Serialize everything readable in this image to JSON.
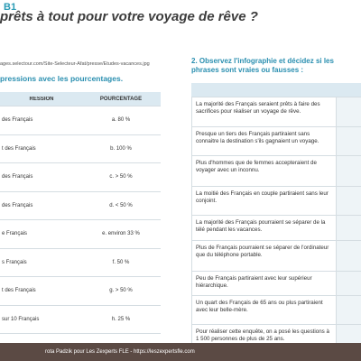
{
  "header": {
    "level": "B1",
    "title": "prêts à tout pour votre voyage de rêve ?"
  },
  "left": {
    "source": "ages.selectour.com/Site-Selecteur-Afat/presse/Etudes-vacances.jpg",
    "instruction": "pressions avec les pourcentages.",
    "table": {
      "headers": [
        "RESSION",
        "POURCENTAGE"
      ],
      "rows": [
        [
          "des Français",
          "a. 80 %"
        ],
        [
          "t des Français",
          "b. 100 %"
        ],
        [
          "des Français",
          "c. > 50 %"
        ],
        [
          "des Français",
          "d. < 50 %"
        ],
        [
          "e Français",
          "e. environ 33 %"
        ],
        [
          "s Français",
          "f. 50 %"
        ],
        [
          "t des Français",
          "g. > 50 %"
        ],
        [
          "sur 10 Français",
          "h. 25 %"
        ]
      ]
    }
  },
  "right": {
    "instruction": "2. Observez l'infographie et décidez si les phrases sont vraies ou fausses :",
    "statements": [
      "La majorité des Français seraient prêts à faire des sacrifices pour réaliser un voyage de rêve.",
      "Presque un tiers des Français partiraient sans connaitre la destination s'ils gagnaient un voyage.",
      "Plus d'hommes que de femmes accepteraient de voyager avec un inconnu.",
      "La moitié des Français en couple partiraient sans leur conjoint.",
      "La majorité des Français pourraient se séparer de la télé pendant les vacances.",
      "Plus de Français pourraient se séparer de l'ordinateur que du téléphone portable.",
      "Peu de Français partiraient avec leur supérieur hiérarchique.",
      "Un quart des Français de 65 ans ou plus partiraient avec leur belle-mère.",
      "Pour réaliser cette enquête, on a posé les questions à 1 500 personnes de plus de 25 ans."
    ]
  },
  "footer": "rota Padzik pour Les Zexperts FLE - https://leszexpertsfle.com"
}
